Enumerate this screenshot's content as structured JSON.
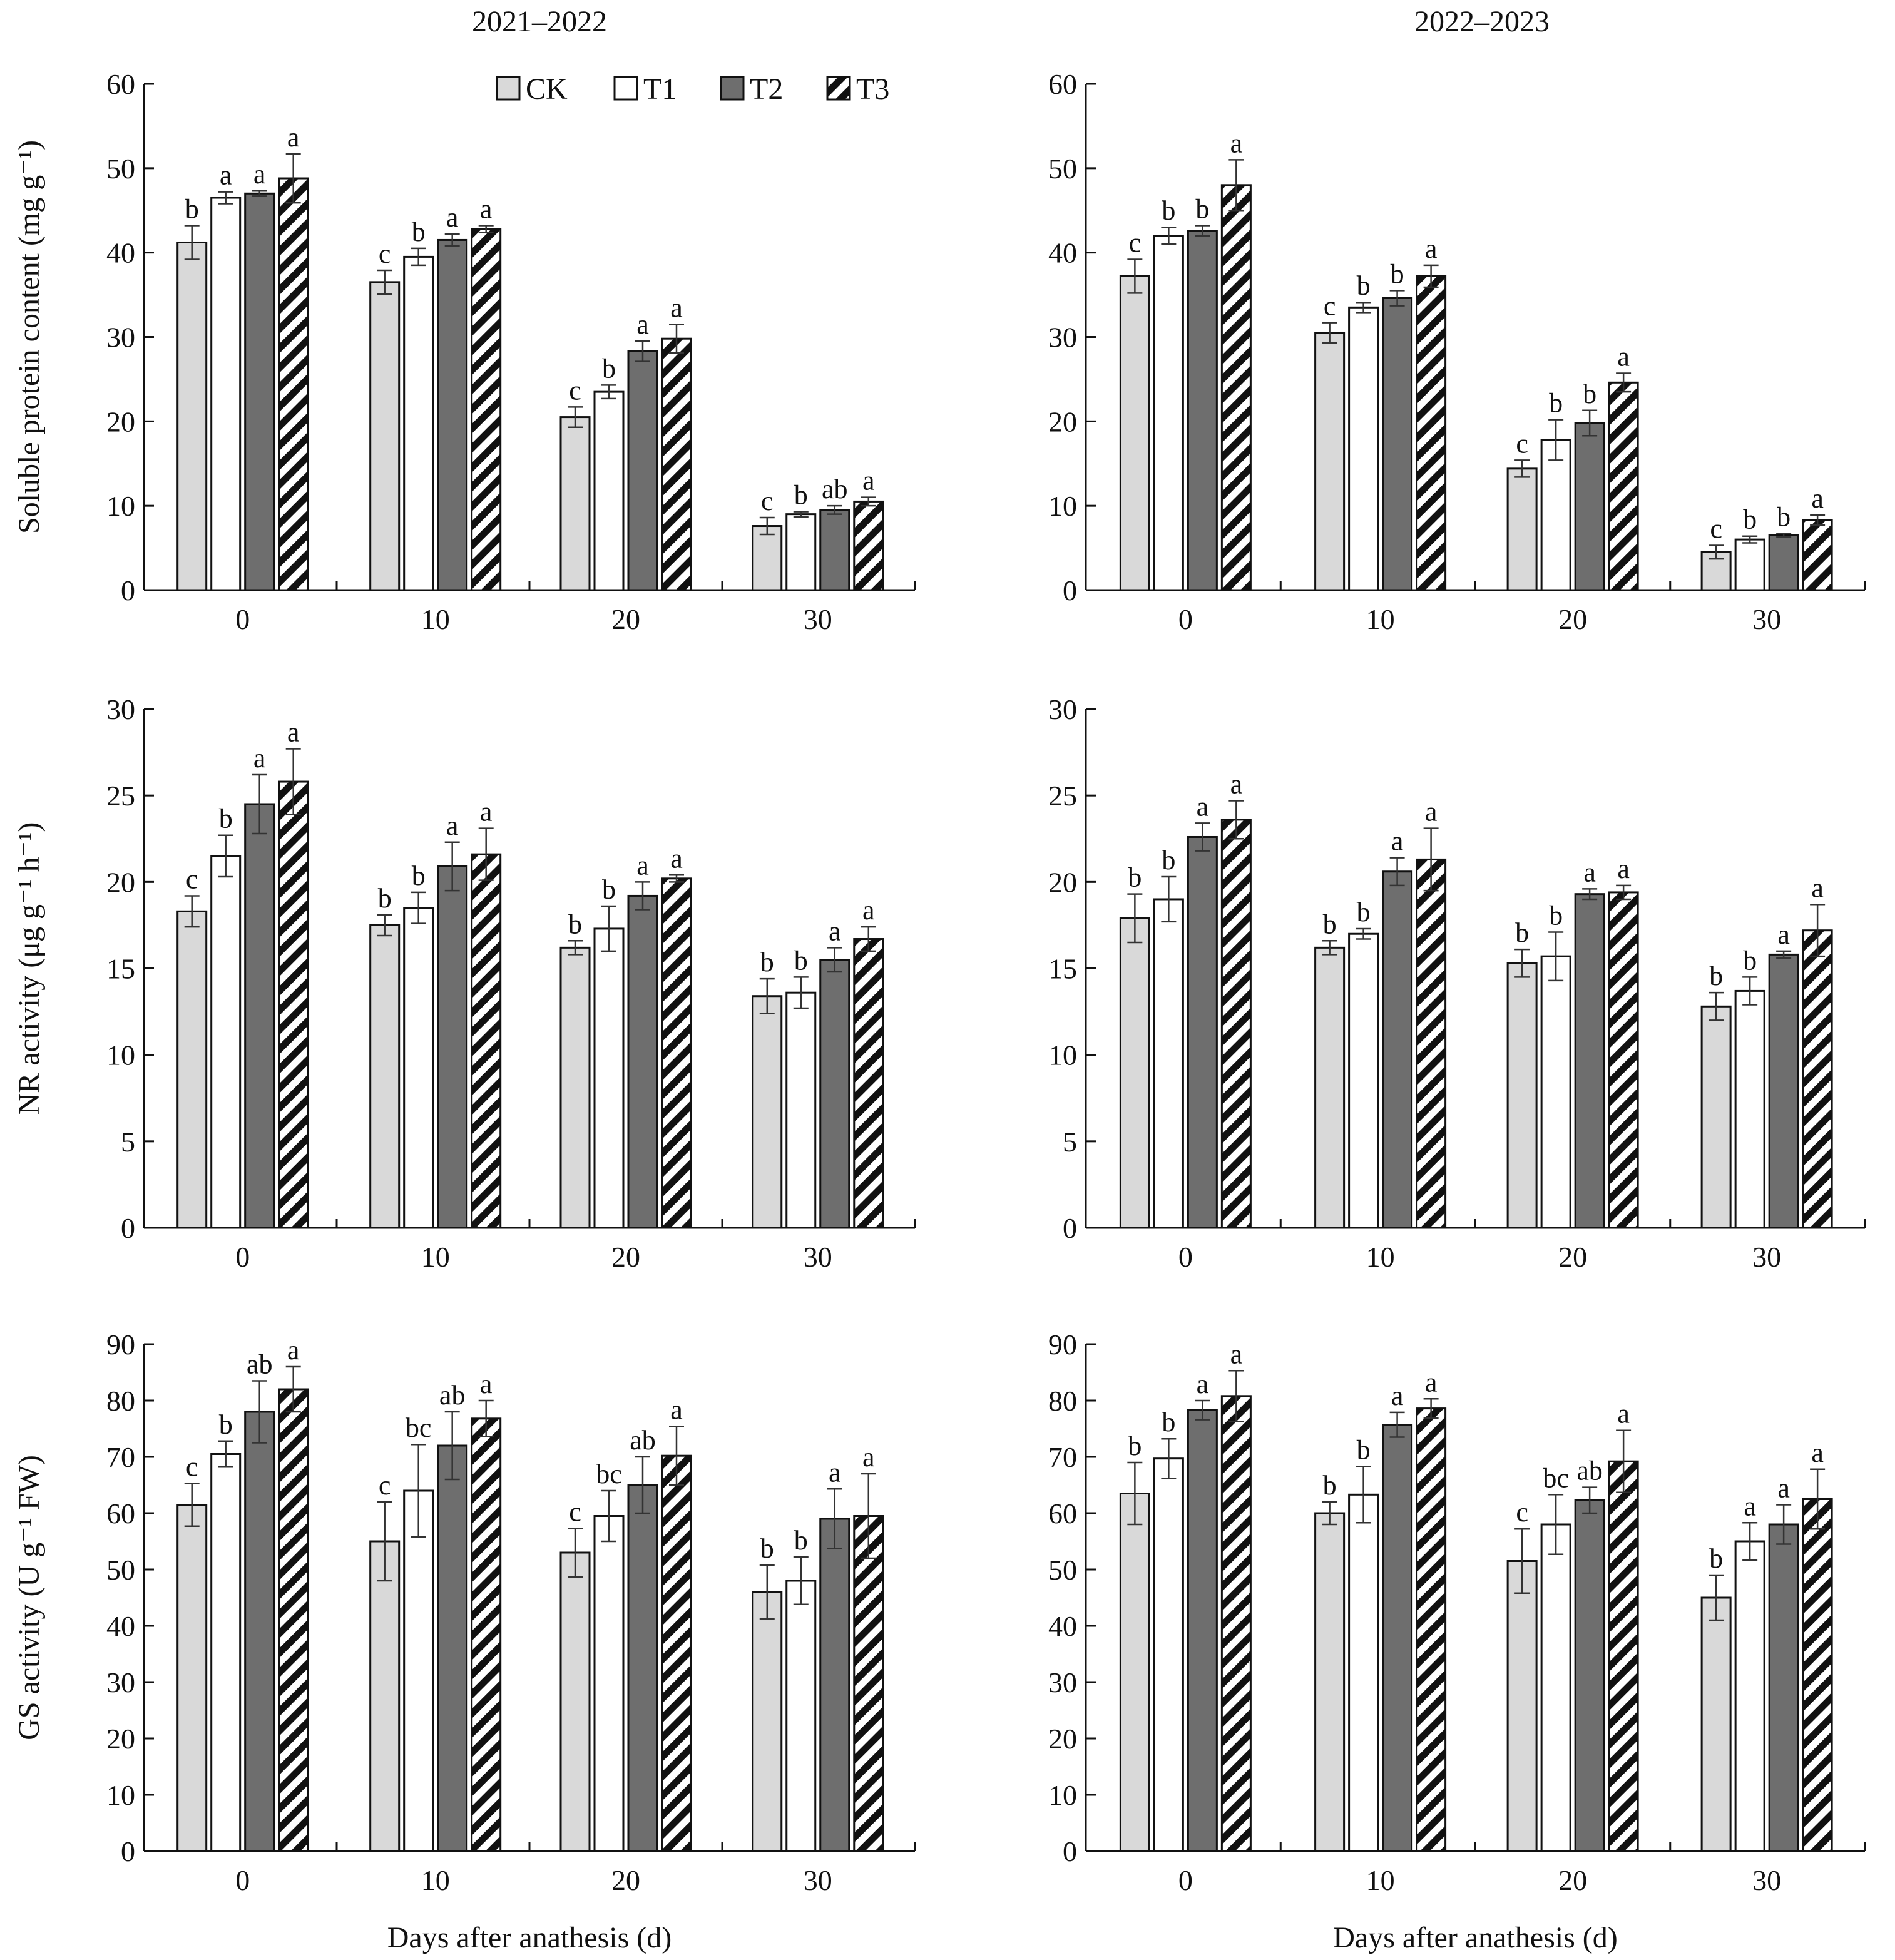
{
  "figure": {
    "column_titles": [
      "2021–2022",
      "2022–2023"
    ],
    "x_axis_title": "Days after anathesis (d)",
    "legend": [
      {
        "label": "CK",
        "fill": "#d9d9d9",
        "pattern": "solid"
      },
      {
        "label": "T1",
        "fill": "#ffffff",
        "pattern": "solid"
      },
      {
        "label": "T2",
        "fill": "#6e6e6e",
        "pattern": "solid"
      },
      {
        "label": "T3",
        "fill": "#ffffff",
        "pattern": "hatch"
      }
    ],
    "colors": {
      "CK": "#d9d9d9",
      "T1": "#ffffff",
      "T2": "#6e6e6e",
      "T3_stripe": "#111111"
    }
  },
  "chart_data": [
    {
      "type": "bar",
      "row": 0,
      "col": 0,
      "title": "2021–2022",
      "ylabel": "Soluble protein content (mg g⁻¹)",
      "xlabel": "",
      "categories": [
        "0",
        "10",
        "20",
        "30"
      ],
      "ylim": [
        0,
        60
      ],
      "yticks": [
        0,
        10,
        20,
        30,
        40,
        50,
        60
      ],
      "series": [
        {
          "name": "CK",
          "values": [
            41.2,
            36.5,
            20.5,
            7.6
          ],
          "errors": [
            2.0,
            1.4,
            1.2,
            1.0
          ],
          "letters": [
            "b",
            "c",
            "c",
            "c"
          ]
        },
        {
          "name": "T1",
          "values": [
            46.5,
            39.5,
            23.5,
            9.0
          ],
          "errors": [
            0.7,
            1.0,
            0.8,
            0.3
          ],
          "letters": [
            "a",
            "b",
            "b",
            "b"
          ]
        },
        {
          "name": "T2",
          "values": [
            47.0,
            41.5,
            28.3,
            9.5
          ],
          "errors": [
            0.3,
            0.7,
            1.2,
            0.5
          ],
          "letters": [
            "a",
            "a",
            "a",
            "ab"
          ]
        },
        {
          "name": "T3",
          "values": [
            48.8,
            42.8,
            29.8,
            10.5
          ],
          "errors": [
            2.9,
            0.4,
            1.7,
            0.5
          ],
          "letters": [
            "a",
            "a",
            "a",
            "a"
          ]
        }
      ]
    },
    {
      "type": "bar",
      "row": 0,
      "col": 1,
      "title": "2022–2023",
      "ylabel": "",
      "xlabel": "",
      "categories": [
        "0",
        "10",
        "20",
        "30"
      ],
      "ylim": [
        0,
        60
      ],
      "yticks": [
        0,
        10,
        20,
        30,
        40,
        50,
        60
      ],
      "series": [
        {
          "name": "CK",
          "values": [
            37.2,
            30.5,
            14.4,
            4.5
          ],
          "errors": [
            2.0,
            1.2,
            1.0,
            0.8
          ],
          "letters": [
            "c",
            "c",
            "c",
            "c"
          ]
        },
        {
          "name": "T1",
          "values": [
            42.0,
            33.5,
            17.8,
            6.0
          ],
          "errors": [
            1.0,
            0.6,
            2.4,
            0.4
          ],
          "letters": [
            "b",
            "b",
            "b",
            "b"
          ]
        },
        {
          "name": "T2",
          "values": [
            42.6,
            34.6,
            19.8,
            6.5
          ],
          "errors": [
            0.6,
            0.9,
            1.5,
            0.2
          ],
          "letters": [
            "b",
            "b",
            "b",
            "b"
          ]
        },
        {
          "name": "T3",
          "values": [
            48.0,
            37.2,
            24.6,
            8.3
          ],
          "errors": [
            3.0,
            1.3,
            1.1,
            0.6
          ],
          "letters": [
            "a",
            "a",
            "a",
            "a"
          ]
        }
      ]
    },
    {
      "type": "bar",
      "row": 1,
      "col": 0,
      "title": "",
      "ylabel": "NR activity (μg g⁻¹ h⁻¹)",
      "xlabel": "",
      "categories": [
        "0",
        "10",
        "20",
        "30"
      ],
      "ylim": [
        0,
        30
      ],
      "yticks": [
        0,
        5,
        10,
        15,
        20,
        25,
        30
      ],
      "series": [
        {
          "name": "CK",
          "values": [
            18.3,
            17.5,
            16.2,
            13.4
          ],
          "errors": [
            0.9,
            0.6,
            0.4,
            1.0
          ],
          "letters": [
            "c",
            "b",
            "b",
            "b"
          ]
        },
        {
          "name": "T1",
          "values": [
            21.5,
            18.5,
            17.3,
            13.6
          ],
          "errors": [
            1.2,
            0.9,
            1.3,
            0.9
          ],
          "letters": [
            "b",
            "b",
            "b",
            "b"
          ]
        },
        {
          "name": "T2",
          "values": [
            24.5,
            20.9,
            19.2,
            15.5
          ],
          "errors": [
            1.7,
            1.4,
            0.8,
            0.7
          ],
          "letters": [
            "a",
            "a",
            "a",
            "a"
          ]
        },
        {
          "name": "T3",
          "values": [
            25.8,
            21.6,
            20.2,
            16.7
          ],
          "errors": [
            1.9,
            1.5,
            0.2,
            0.7
          ],
          "letters": [
            "a",
            "a",
            "a",
            "a"
          ]
        }
      ]
    },
    {
      "type": "bar",
      "row": 1,
      "col": 1,
      "title": "",
      "ylabel": "",
      "xlabel": "",
      "categories": [
        "0",
        "10",
        "20",
        "30"
      ],
      "ylim": [
        0,
        30
      ],
      "yticks": [
        0,
        5,
        10,
        15,
        20,
        25,
        30
      ],
      "series": [
        {
          "name": "CK",
          "values": [
            17.9,
            16.2,
            15.3,
            12.8
          ],
          "errors": [
            1.4,
            0.4,
            0.8,
            0.8
          ],
          "letters": [
            "b",
            "b",
            "b",
            "b"
          ]
        },
        {
          "name": "T1",
          "values": [
            19.0,
            17.0,
            15.7,
            13.7
          ],
          "errors": [
            1.3,
            0.3,
            1.4,
            0.8
          ],
          "letters": [
            "b",
            "b",
            "b",
            "b"
          ]
        },
        {
          "name": "T2",
          "values": [
            22.6,
            20.6,
            19.3,
            15.8
          ],
          "errors": [
            0.8,
            0.8,
            0.3,
            0.2
          ],
          "letters": [
            "a",
            "a",
            "a",
            "a"
          ]
        },
        {
          "name": "T3",
          "values": [
            23.6,
            21.3,
            19.4,
            17.2
          ],
          "errors": [
            1.1,
            1.8,
            0.4,
            1.5
          ],
          "letters": [
            "a",
            "a",
            "a",
            "a"
          ]
        }
      ]
    },
    {
      "type": "bar",
      "row": 2,
      "col": 0,
      "title": "",
      "ylabel": "GS activity (U g⁻¹ FW)",
      "xlabel": "Days after anathesis (d)",
      "categories": [
        "0",
        "10",
        "20",
        "30"
      ],
      "ylim": [
        0,
        90
      ],
      "yticks": [
        0,
        10,
        20,
        30,
        40,
        50,
        60,
        70,
        80,
        90
      ],
      "series": [
        {
          "name": "CK",
          "values": [
            61.5,
            55.0,
            53.0,
            46.0
          ],
          "errors": [
            3.8,
            7.0,
            4.3,
            4.8
          ],
          "letters": [
            "c",
            "c",
            "c",
            "b"
          ]
        },
        {
          "name": "T1",
          "values": [
            70.5,
            64.0,
            59.5,
            48.0
          ],
          "errors": [
            2.3,
            8.2,
            4.5,
            4.2
          ],
          "letters": [
            "b",
            "bc",
            "bc",
            "b"
          ]
        },
        {
          "name": "T2",
          "values": [
            78.0,
            72.0,
            65.0,
            59.0
          ],
          "errors": [
            5.5,
            6.0,
            5.0,
            5.3
          ],
          "letters": [
            "ab",
            "ab",
            "ab",
            "a"
          ]
        },
        {
          "name": "T3",
          "values": [
            82.0,
            76.8,
            70.2,
            59.5
          ],
          "errors": [
            4.0,
            3.2,
            5.2,
            7.5
          ],
          "letters": [
            "a",
            "a",
            "a",
            "a"
          ]
        }
      ]
    },
    {
      "type": "bar",
      "row": 2,
      "col": 1,
      "title": "",
      "ylabel": "",
      "xlabel": "Days after anathesis (d)",
      "categories": [
        "0",
        "10",
        "20",
        "30"
      ],
      "ylim": [
        0,
        90
      ],
      "yticks": [
        0,
        10,
        20,
        30,
        40,
        50,
        60,
        70,
        80,
        90
      ],
      "series": [
        {
          "name": "CK",
          "values": [
            63.5,
            60.0,
            51.5,
            45.0
          ],
          "errors": [
            5.5,
            2.0,
            5.7,
            4.0
          ],
          "letters": [
            "b",
            "b",
            "c",
            "b"
          ]
        },
        {
          "name": "T1",
          "values": [
            69.7,
            63.3,
            58.0,
            55.0
          ],
          "errors": [
            3.5,
            5.0,
            5.3,
            3.3
          ],
          "letters": [
            "b",
            "b",
            "bc",
            "a"
          ]
        },
        {
          "name": "T2",
          "values": [
            78.3,
            75.7,
            62.3,
            58.0
          ],
          "errors": [
            1.7,
            2.2,
            2.3,
            3.5
          ],
          "letters": [
            "a",
            "a",
            "ab",
            "a"
          ]
        },
        {
          "name": "T3",
          "values": [
            80.8,
            78.6,
            69.2,
            62.5
          ],
          "errors": [
            4.5,
            1.7,
            5.5,
            5.3
          ],
          "letters": [
            "a",
            "a",
            "a",
            "a"
          ]
        }
      ]
    }
  ]
}
